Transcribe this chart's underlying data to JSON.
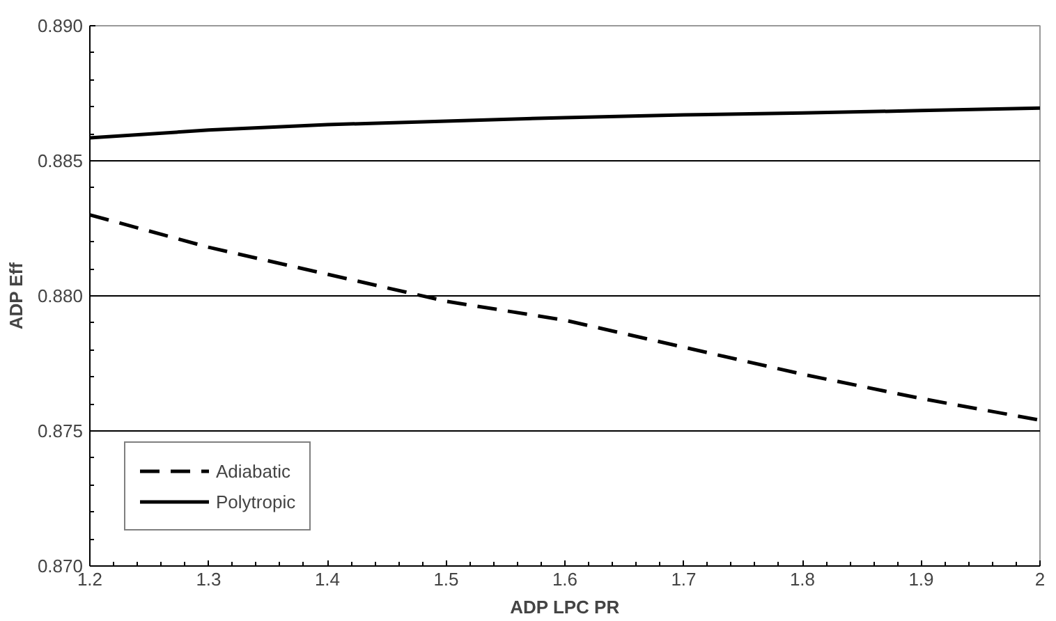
{
  "chart_data": {
    "type": "line",
    "xlabel": "ADP LPC PR",
    "ylabel": "ADP Eff",
    "x": [
      1.2,
      1.3,
      1.4,
      1.5,
      1.6,
      1.7,
      1.8,
      1.9,
      2.0
    ],
    "series": [
      {
        "name": "Adiabatic",
        "color": "#000000",
        "line_style": "dashed",
        "values": [
          0.883,
          0.8818,
          0.8808,
          0.8798,
          0.8791,
          0.8781,
          0.8771,
          0.8762,
          0.8754
        ]
      },
      {
        "name": "Polytropic",
        "color": "#000000",
        "line_style": "solid",
        "values": [
          0.88585,
          0.88614,
          0.88634,
          0.88647,
          0.8866,
          0.8867,
          0.88677,
          0.88686,
          0.88695
        ]
      }
    ],
    "xlim": [
      1.2,
      2.0
    ],
    "xticks": [
      1.2,
      1.3,
      1.4,
      1.5,
      1.6,
      1.7,
      1.8,
      1.9,
      {
        "value": 2.0,
        "label": "2"
      }
    ],
    "ylim": [
      0.87,
      0.89
    ],
    "yticks": [
      {
        "value": 0.87,
        "label": "0.870"
      },
      {
        "value": 0.875,
        "label": "0.875"
      },
      {
        "value": 0.88,
        "label": "0.880"
      },
      {
        "value": 0.885,
        "label": "0.885"
      },
      {
        "value": 0.89,
        "label": "0.890"
      }
    ],
    "grid": "y",
    "legend": "bottom left",
    "marker": "none"
  }
}
